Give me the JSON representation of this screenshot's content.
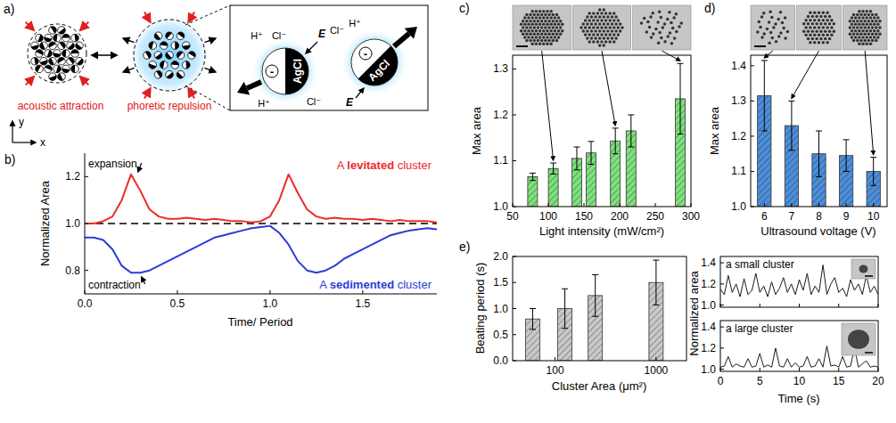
{
  "diagram": {
    "panel_label": "a)",
    "cluster_labels": [
      "acoustic attraction",
      "phoretic repulsion"
    ],
    "axis_labels": [
      "x",
      "y"
    ],
    "inset": {
      "ions": [
        "H⁺",
        "Cl⁻"
      ],
      "field": "E",
      "material": "AgCl",
      "charge": "-"
    }
  },
  "chart_data": [
    {
      "type": "line",
      "panel_label": "b)",
      "x_label": "Time/ Period",
      "y_label": "Normalized Area",
      "x": [
        0,
        0.05,
        0.1,
        0.15,
        0.2,
        0.25,
        0.3,
        0.35,
        0.4,
        0.45,
        0.5,
        0.55,
        0.6,
        0.65,
        0.7,
        0.75,
        0.8,
        0.85,
        0.9,
        0.95,
        1,
        1.05,
        1.1,
        1.15,
        1.2,
        1.25,
        1.3,
        1.35,
        1.4,
        1.45,
        1.5,
        1.55,
        1.6,
        1.65,
        1.7,
        1.75,
        1.8,
        1.85,
        1.9
      ],
      "series": [
        {
          "name": "A levitated cluster",
          "color": "#ee2b2b",
          "values": [
            1,
            1,
            1.01,
            1.03,
            1.1,
            1.21,
            1.14,
            1.06,
            1.03,
            1.02,
            1.02,
            1.025,
            1.02,
            1.015,
            1.02,
            1.015,
            1.01,
            1.01,
            1.005,
            1.01,
            1.03,
            1.1,
            1.21,
            1.13,
            1.06,
            1.03,
            1.02,
            1.025,
            1.02,
            1.02,
            1.015,
            1.02,
            1.015,
            1.01,
            1.015,
            1.01,
            1.01,
            1.01,
            1.005
          ]
        },
        {
          "name": "A sedimented cluster",
          "color": "#2b3cd8",
          "values": [
            0.94,
            0.94,
            0.93,
            0.89,
            0.82,
            0.79,
            0.79,
            0.8,
            0.82,
            0.84,
            0.86,
            0.88,
            0.9,
            0.92,
            0.94,
            0.95,
            0.96,
            0.97,
            0.98,
            0.985,
            0.99,
            0.96,
            0.91,
            0.84,
            0.8,
            0.79,
            0.8,
            0.82,
            0.85,
            0.87,
            0.89,
            0.91,
            0.93,
            0.95,
            0.96,
            0.97,
            0.975,
            0.98,
            0.975
          ]
        },
        {
          "color": "#000000",
          "line_style": "dashed",
          "values": [
            1,
            1,
            1,
            1,
            1,
            1,
            1,
            1,
            1,
            1,
            1,
            1,
            1,
            1,
            1,
            1,
            1,
            1,
            1,
            1,
            1,
            1,
            1,
            1,
            1,
            1,
            1,
            1,
            1,
            1,
            1,
            1,
            1,
            1,
            1,
            1,
            1,
            1,
            1
          ]
        }
      ],
      "annotations": [
        "expansion",
        "contraction"
      ],
      "xlim": [
        0,
        1.9
      ],
      "xticks": [
        {
          "value": 0,
          "label": "0.0"
        },
        0.5,
        {
          "value": 1,
          "label": "1.0"
        },
        1.5
      ],
      "ylim": [
        0.7,
        1.3
      ],
      "yticks": [
        0.8,
        {
          "value": 1,
          "label": "1.0"
        },
        1.2
      ]
    },
    {
      "type": "bar",
      "panel_label": "c)",
      "x_label": "Light intensity (mW/cm²)",
      "y_label": "Max area",
      "x": [
        78,
        107,
        140,
        160,
        194,
        216,
        285
      ],
      "values": [
        1.065,
        1.083,
        1.105,
        1.117,
        1.143,
        1.165,
        1.235
      ],
      "errors": [
        0.008,
        0.012,
        0.025,
        0.025,
        0.028,
        0.035,
        0.077
      ],
      "color": "#7fe07f",
      "xlim": [
        50,
        300
      ],
      "xticks": [
        50,
        100,
        150,
        200,
        250,
        300
      ],
      "ylim": [
        1.0,
        1.33
      ],
      "yticks": [
        {
          "value": 1,
          "label": "1.0"
        },
        1.1,
        1.2,
        1.3
      ]
    },
    {
      "type": "bar",
      "panel_label": "d)",
      "x_label": "Ultrasound voltage (V)",
      "y_label": "Max area",
      "categories": [
        "6",
        "7",
        "8",
        "9",
        "10"
      ],
      "values": [
        1.315,
        1.23,
        1.15,
        1.145,
        1.1
      ],
      "errors": [
        0.1,
        0.07,
        0.065,
        0.045,
        0.04
      ],
      "color": "#4d8fd9",
      "ylim": [
        1.0,
        1.43
      ],
      "yticks": [
        {
          "value": 1,
          "label": "1.0"
        },
        1.1,
        1.2,
        1.3,
        1.4
      ]
    },
    {
      "type": "bar",
      "panel_label": "e)",
      "x_label": "Cluster Area (μm²)",
      "y_label": "Beating period (s)",
      "log": "x",
      "x": [
        60,
        125,
        250,
        1000
      ],
      "values": [
        0.8,
        1.0,
        1.25,
        1.5
      ],
      "errors": [
        0.2,
        0.38,
        0.4,
        0.43
      ],
      "color": "#c9c9c9",
      "xlim": [
        38,
        2000
      ],
      "xticks": [
        100,
        1000
      ],
      "ylim": [
        0,
        2
      ],
      "yticks": [
        {
          "value": 0,
          "label": "0.0"
        },
        0.5,
        {
          "value": 1,
          "label": "1.0"
        },
        1.5,
        {
          "value": 2,
          "label": "2.0"
        }
      ]
    },
    {
      "type": "line",
      "tick_labels": "y",
      "x": [
        0,
        0.5,
        1,
        1.5,
        2,
        2.5,
        3,
        3.5,
        4,
        4.5,
        5,
        5.5,
        6,
        6.5,
        7,
        7.5,
        8,
        8.5,
        9,
        9.5,
        10,
        10.5,
        11,
        11.5,
        12,
        12.5,
        13,
        13.5,
        14,
        14.5,
        15,
        15.5,
        16,
        16.5,
        17,
        17.5,
        18,
        18.5,
        19,
        19.5,
        20
      ],
      "series": [
        {
          "name": "a small cluster",
          "color": "#1a1a1a",
          "values": [
            1.15,
            1.1,
            1.28,
            1.12,
            1.2,
            1.08,
            1.25,
            1.1,
            1.14,
            1.3,
            1.12,
            1.18,
            1.08,
            1.22,
            1.1,
            1.16,
            1.26,
            1.12,
            1.2,
            1.1,
            1.24,
            1.14,
            1.3,
            1.1,
            1.18,
            1.12,
            1.38,
            1.1,
            1.2,
            1.26,
            1.12,
            1.16,
            1.08,
            1.24,
            1.14,
            1.2,
            1.1,
            1.28,
            1.12,
            1.18,
            1.1
          ]
        }
      ],
      "xlim": [
        0,
        20
      ],
      "xticks": [
        0,
        5,
        10,
        15,
        20
      ],
      "ylim": [
        0.98,
        1.46
      ],
      "yticks": [
        {
          "value": 1,
          "label": "1.0"
        },
        1.2,
        1.4
      ]
    },
    {
      "type": "line",
      "x_label": "Time (s)",
      "y_label": "Normalized area",
      "x": [
        0,
        0.5,
        1,
        1.5,
        2,
        2.5,
        3,
        3.5,
        4,
        4.5,
        5,
        5.5,
        6,
        6.5,
        7,
        7.5,
        8,
        8.5,
        9,
        9.5,
        10,
        10.5,
        11,
        11.5,
        12,
        12.5,
        13,
        13.5,
        14,
        14.5,
        15,
        15.5,
        16,
        16.5,
        17,
        17.5,
        18,
        18.5,
        19,
        19.5,
        20
      ],
      "series": [
        {
          "name": "a large cluster",
          "color": "#1a1a1a",
          "values": [
            1.02,
            1.03,
            1.12,
            1.02,
            1.05,
            1.03,
            1.02,
            1.1,
            1.02,
            1.03,
            1.15,
            1.02,
            1.04,
            1.02,
            1.2,
            1.03,
            1.02,
            1.1,
            1.02,
            1.06,
            1.02,
            1.03,
            1.12,
            1.02,
            1.03,
            1.1,
            1.02,
            1.22,
            1.03,
            1.04,
            1.02,
            1.12,
            1.02,
            1.03,
            1.2,
            1.02,
            1.05,
            1.08,
            1.02,
            1.03,
            1.02
          ]
        }
      ],
      "xlim": [
        0,
        20
      ],
      "xticks": [
        0,
        5,
        10,
        15,
        20
      ],
      "ylim": [
        0.98,
        1.46
      ],
      "yticks": [
        {
          "value": 1,
          "label": "1.0"
        },
        1.2,
        1.4
      ]
    }
  ]
}
